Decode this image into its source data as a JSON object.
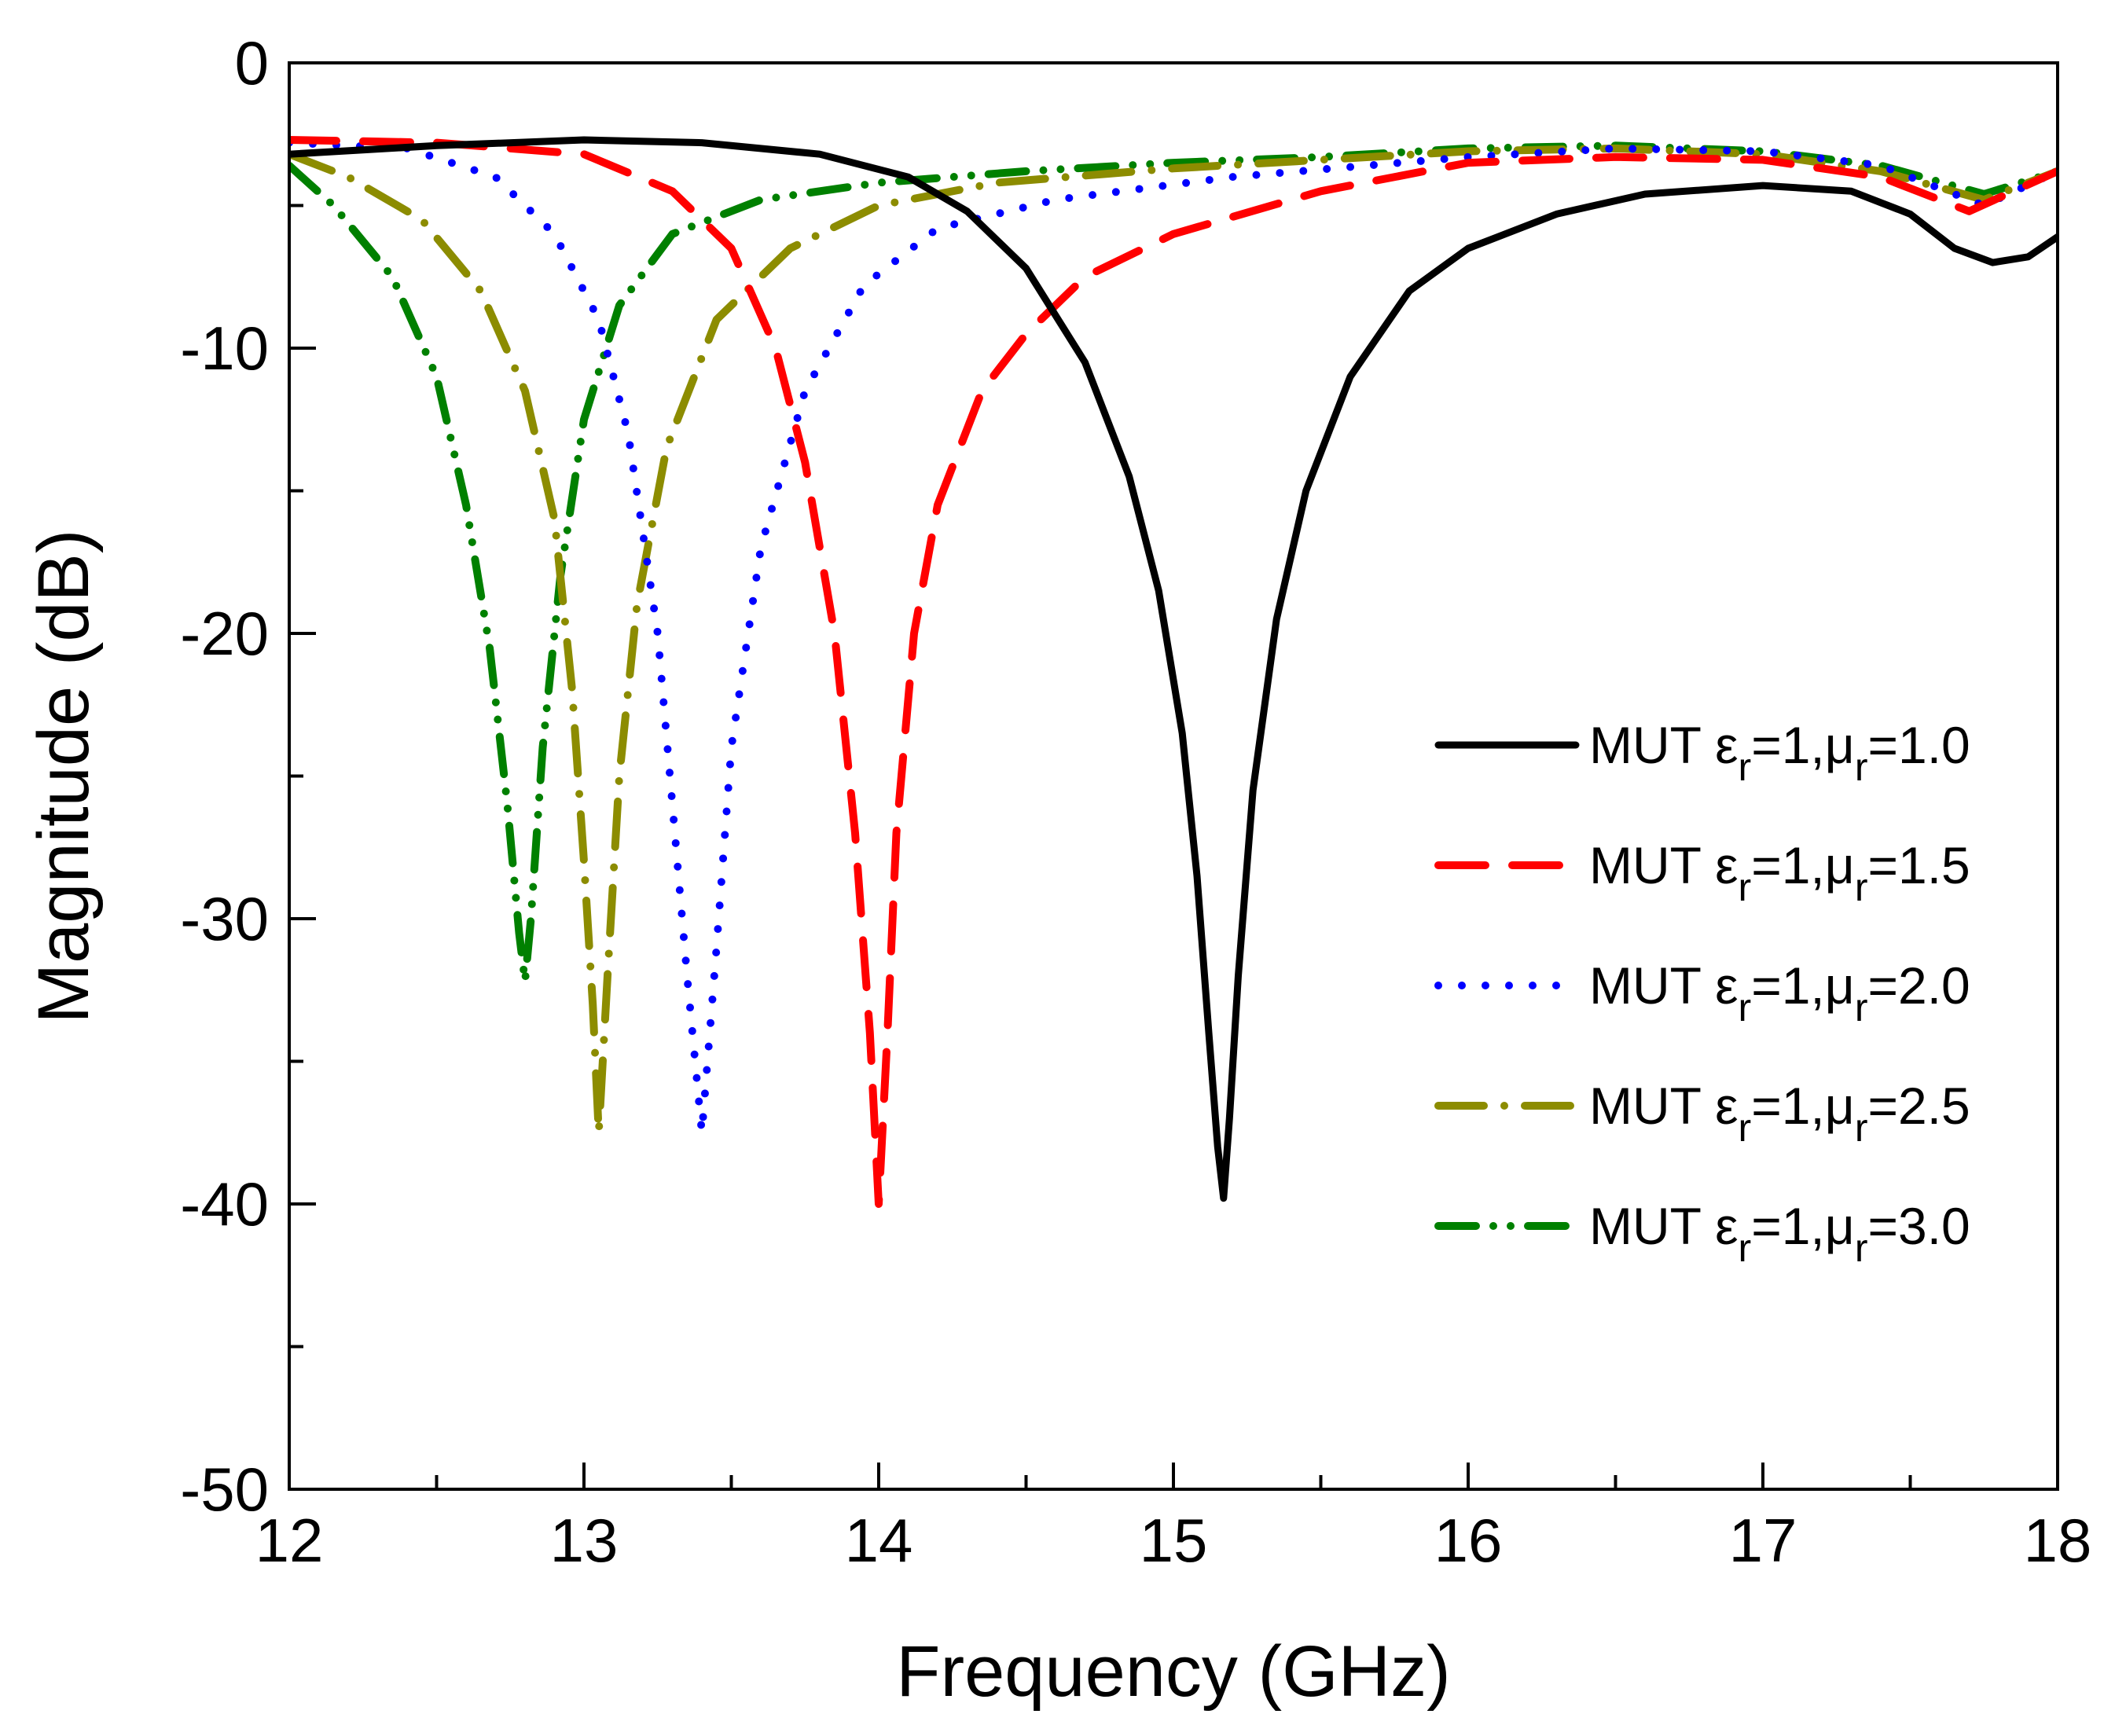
{
  "chart_data": {
    "type": "line",
    "title": "",
    "xlabel": "Frequency (GHz)",
    "ylabel": "Magnitude (dB)",
    "xlim": [
      12,
      18
    ],
    "ylim": [
      -50,
      0
    ],
    "xticks": [
      "12",
      "13",
      "14",
      "15",
      "16",
      "17",
      "18"
    ],
    "yticks": [
      "0",
      "-10",
      "-20",
      "-30",
      "-40",
      "-50"
    ],
    "legend_position": "center-right",
    "series": [
      {
        "name": "MUT εr=1,μr=1.0",
        "legend": {
          "prefix": "MUT ε",
          "sub1": "r",
          "mid": "=1,μ",
          "sub2": "r",
          "suffix": "=1.0"
        },
        "color": "#000000",
        "style": "solid",
        "x": [
          12.0,
          12.5,
          13.0,
          13.4,
          13.8,
          14.1,
          14.3,
          14.5,
          14.7,
          14.85,
          14.95,
          15.03,
          15.08,
          15.12,
          15.15,
          15.17,
          15.19,
          15.22,
          15.27,
          15.35,
          15.45,
          15.6,
          15.8,
          16.0,
          16.3,
          16.6,
          17.0,
          17.3,
          17.5,
          17.65,
          17.78,
          17.9,
          18.0
        ],
        "y": [
          -3.2,
          -2.9,
          -2.7,
          -2.8,
          -3.2,
          -4.0,
          -5.2,
          -7.2,
          -10.5,
          -14.5,
          -18.5,
          -23.5,
          -28.5,
          -34.0,
          -38.0,
          -39.8,
          -37.0,
          -32.0,
          -25.5,
          -19.5,
          -15.0,
          -11.0,
          -8.0,
          -6.5,
          -5.3,
          -4.6,
          -4.3,
          -4.5,
          -5.3,
          -6.5,
          -7.0,
          -6.8,
          -6.1
        ]
      },
      {
        "name": "MUT εr=1,μr=1.5",
        "legend": {
          "prefix": "MUT ε",
          "sub1": "r",
          "mid": "=1,μ",
          "sub2": "r",
          "suffix": "=1.5"
        },
        "color": "#ff0000",
        "style": "dashed",
        "x": [
          12.0,
          12.5,
          13.0,
          13.3,
          13.5,
          13.65,
          13.75,
          13.85,
          13.92,
          13.97,
          14.0,
          14.03,
          14.06,
          14.12,
          14.2,
          14.35,
          14.5,
          14.7,
          15.0,
          15.5,
          16.0,
          16.5,
          17.0,
          17.4,
          17.7,
          18.0
        ],
        "y": [
          -2.7,
          -2.8,
          -3.2,
          -4.5,
          -6.5,
          -10.0,
          -14.0,
          -20.0,
          -27.0,
          -34.0,
          -40.0,
          -34.0,
          -27.0,
          -20.0,
          -15.5,
          -11.5,
          -9.5,
          -7.5,
          -6.0,
          -4.5,
          -3.5,
          -3.3,
          -3.4,
          -4.0,
          -5.2,
          -3.8
        ]
      },
      {
        "name": "MUT εr=1,μr=2.0",
        "legend": {
          "prefix": "MUT ε",
          "sub1": "r",
          "mid": "=1,μ",
          "sub2": "r",
          "suffix": "=2.0"
        },
        "color": "#0000ff",
        "style": "dotted",
        "x": [
          12.0,
          12.4,
          12.7,
          12.9,
          13.05,
          13.15,
          13.25,
          13.3,
          13.35,
          13.4,
          13.45,
          13.5,
          13.6,
          13.75,
          13.95,
          14.2,
          14.6,
          15.2,
          16.0,
          16.5,
          17.0,
          17.4,
          17.75,
          18.0
        ],
        "y": [
          -2.8,
          -3.0,
          -4.0,
          -6.0,
          -9.0,
          -13.0,
          -20.0,
          -26.0,
          -32.0,
          -37.5,
          -31.0,
          -24.0,
          -17.0,
          -11.5,
          -7.8,
          -5.8,
          -4.8,
          -4.0,
          -3.3,
          -3.0,
          -3.1,
          -3.6,
          -5.0,
          -3.8
        ]
      },
      {
        "name": "MUT εr=1,μr=2.5",
        "legend": {
          "prefix": "MUT ε",
          "sub1": "r",
          "mid": "=1,μ",
          "sub2": "r",
          "suffix": "=2.5"
        },
        "color": "#8c8c00",
        "style": "dashdot",
        "x": [
          12.0,
          12.2,
          12.45,
          12.65,
          12.8,
          12.9,
          12.96,
          13.0,
          13.03,
          13.05,
          13.08,
          13.12,
          13.18,
          13.28,
          13.45,
          13.7,
          14.0,
          14.4,
          15.0,
          15.5,
          16.0,
          16.5,
          17.0,
          17.4,
          17.75,
          18.0
        ],
        "y": [
          -3.2,
          -4.0,
          -5.5,
          -8.0,
          -11.5,
          -16.0,
          -22.0,
          -28.0,
          -33.0,
          -37.5,
          -32.0,
          -25.0,
          -19.0,
          -13.5,
          -9.0,
          -6.5,
          -5.0,
          -4.2,
          -3.7,
          -3.4,
          -3.1,
          -3.0,
          -3.2,
          -3.8,
          -4.8,
          -3.8
        ]
      },
      {
        "name": "MUT εr=1,μr=3.0",
        "legend": {
          "prefix": "MUT ε",
          "sub1": "r",
          "mid": "=1,μ",
          "sub2": "r",
          "suffix": "=3.0"
        },
        "color": "#008000",
        "style": "dashdotdot",
        "x": [
          12.0,
          12.15,
          12.35,
          12.5,
          12.6,
          12.68,
          12.74,
          12.78,
          12.8,
          12.82,
          12.86,
          12.92,
          13.0,
          13.12,
          13.3,
          13.6,
          14.0,
          14.5,
          15.0,
          15.5,
          16.0,
          16.5,
          17.0,
          17.4,
          17.75,
          18.0
        ],
        "y": [
          -3.6,
          -5.0,
          -7.5,
          -11.0,
          -15.5,
          -20.5,
          -26.0,
          -30.5,
          -32.2,
          -30.0,
          -24.0,
          -18.0,
          -12.5,
          -8.5,
          -6.0,
          -4.8,
          -4.2,
          -3.8,
          -3.5,
          -3.3,
          -3.0,
          -2.9,
          -3.1,
          -3.6,
          -4.6,
          -3.8
        ]
      }
    ]
  }
}
